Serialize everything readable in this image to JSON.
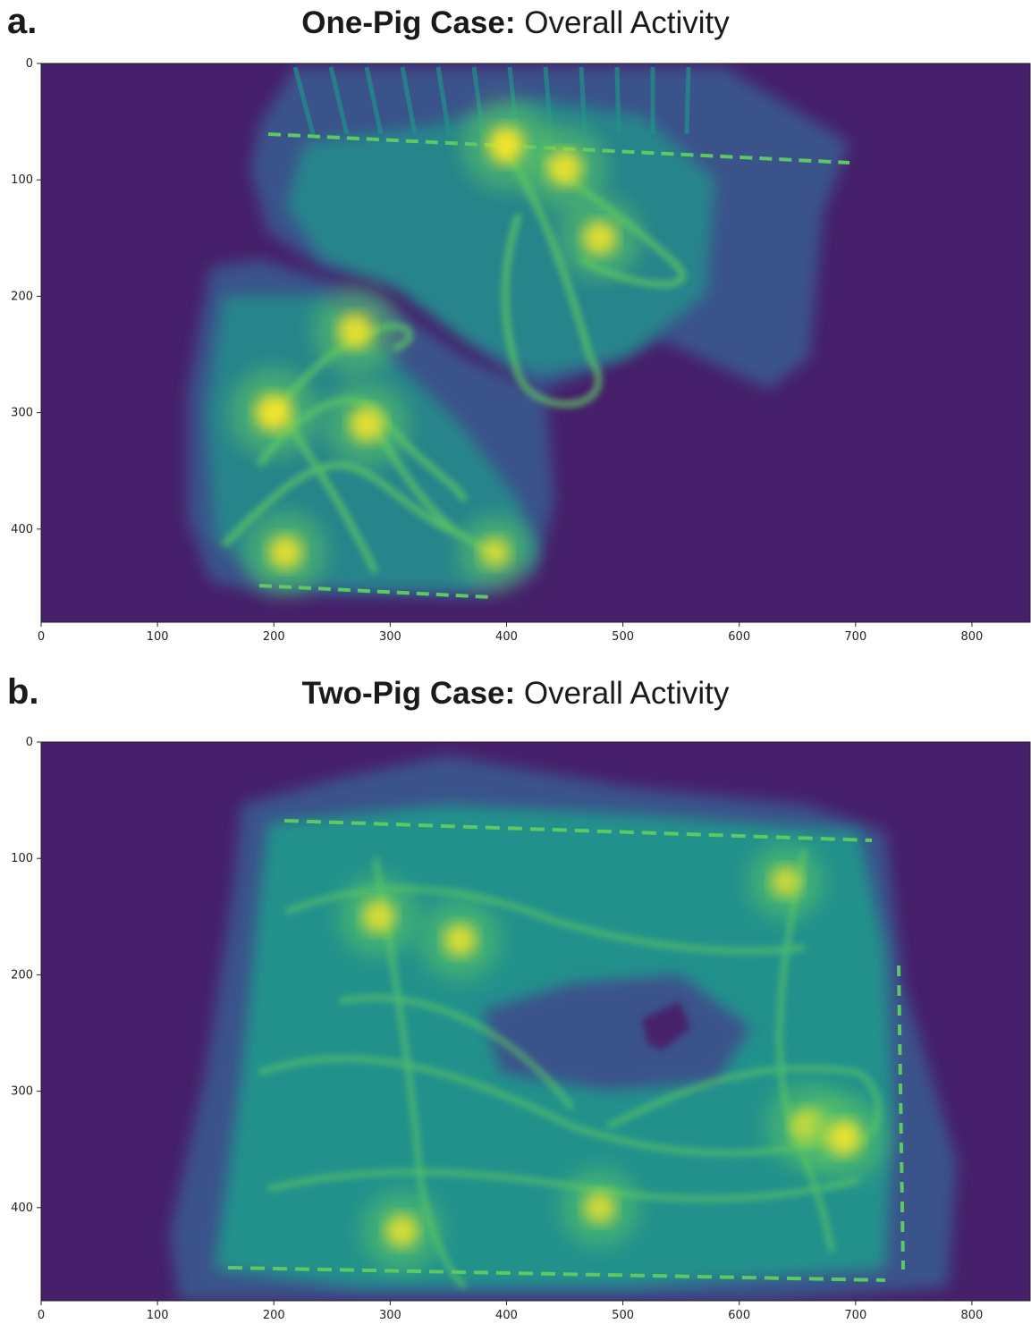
{
  "figure": {
    "panels": [
      {
        "letter": "a.",
        "title_bold": "One-Pig Case:",
        "title_rest": "Overall Activity"
      },
      {
        "letter": "b.",
        "title_bold": "Two-Pig Case:",
        "title_rest": "Overall Activity"
      }
    ]
  },
  "colors": {
    "colormap": "viridis",
    "background": "#46206a",
    "low": "#3b528b",
    "mid": "#21918c",
    "high": "#5ec962",
    "peak": "#fde725"
  },
  "chart_data": [
    {
      "type": "heatmap",
      "title": "One-Pig Case: Overall Activity",
      "colormap": "viridis",
      "xlim": [
        0,
        850
      ],
      "ylim": [
        480,
        0
      ],
      "xticks": [
        0,
        100,
        200,
        300,
        400,
        500,
        600,
        700,
        800
      ],
      "yticks": [
        0,
        100,
        200,
        300,
        400
      ],
      "hotspots": [
        {
          "x": 400,
          "y": 70,
          "level": 0.95
        },
        {
          "x": 450,
          "y": 90,
          "level": 0.85
        },
        {
          "x": 480,
          "y": 150,
          "level": 0.8
        },
        {
          "x": 200,
          "y": 300,
          "level": 0.95
        },
        {
          "x": 270,
          "y": 230,
          "level": 0.85
        },
        {
          "x": 280,
          "y": 310,
          "level": 0.85
        },
        {
          "x": 210,
          "y": 420,
          "level": 0.8
        },
        {
          "x": 390,
          "y": 420,
          "level": 0.65
        }
      ]
    },
    {
      "type": "heatmap",
      "title": "Two-Pig Case: Overall Activity",
      "colormap": "viridis",
      "xlim": [
        0,
        850
      ],
      "ylim": [
        480,
        0
      ],
      "xticks": [
        0,
        100,
        200,
        300,
        400,
        500,
        600,
        700,
        800
      ],
      "yticks": [
        0,
        100,
        200,
        300,
        400
      ],
      "hotspots": [
        {
          "x": 290,
          "y": 150,
          "level": 0.75
        },
        {
          "x": 360,
          "y": 170,
          "level": 0.75
        },
        {
          "x": 660,
          "y": 330,
          "level": 0.85
        },
        {
          "x": 690,
          "y": 340,
          "level": 0.85
        },
        {
          "x": 310,
          "y": 420,
          "level": 0.75
        },
        {
          "x": 480,
          "y": 400,
          "level": 0.7
        },
        {
          "x": 640,
          "y": 120,
          "level": 0.65
        }
      ]
    }
  ]
}
